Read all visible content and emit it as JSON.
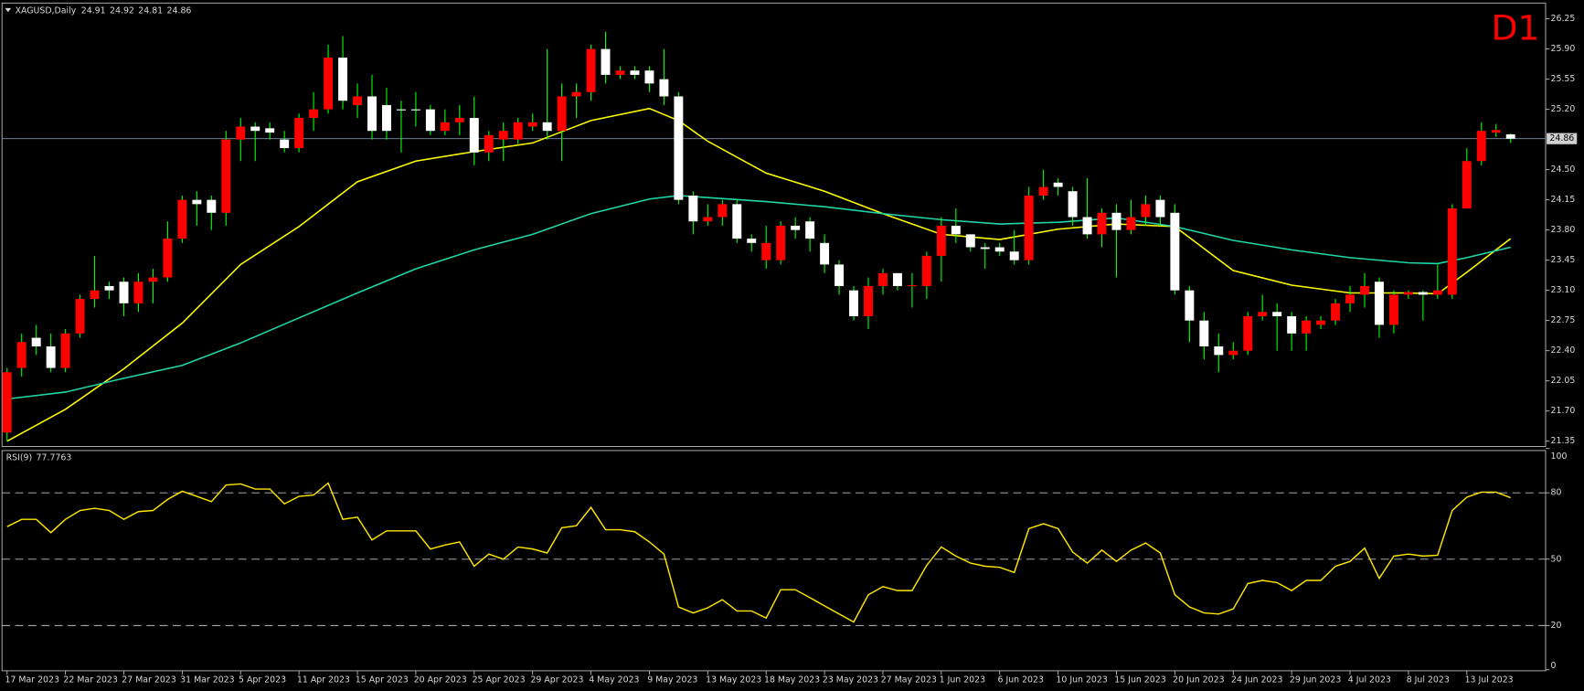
{
  "chart_data": [
    {
      "type": "candlestick",
      "title": "XAGUSD,Daily",
      "annotation": "D1",
      "categories": [
        "17 Mar 2023",
        null,
        null,
        null,
        "22 Mar 2023",
        null,
        null,
        null,
        "27 Mar 2023",
        null,
        null,
        null,
        "31 Mar 2023",
        null,
        null,
        null,
        "5 Apr 2023",
        null,
        null,
        null,
        "11 Apr 2023",
        null,
        null,
        null,
        "15 Apr 2023",
        null,
        null,
        null,
        "20 Apr 2023",
        null,
        null,
        null,
        "25 Apr 2023",
        null,
        null,
        null,
        "29 Apr 2023",
        null,
        null,
        null,
        "4 May 2023",
        null,
        null,
        null,
        "9 May 2023",
        null,
        null,
        null,
        "13 May 2023",
        null,
        null,
        null,
        "18 May 2023",
        null,
        null,
        null,
        "23 May 2023",
        null,
        null,
        null,
        "27 May 2023",
        null,
        null,
        null,
        "1 Jun 2023",
        null,
        null,
        null,
        "6 Jun 2023",
        null,
        null,
        null,
        "10 Jun 2023",
        null,
        null,
        null,
        "15 Jun 2023",
        null,
        null,
        null,
        "20 Jun 2023",
        null,
        null,
        null,
        "24 Jun 2023",
        null,
        null,
        null,
        "29 Jun 2023",
        null,
        null,
        null,
        "4 Jul 2023",
        null,
        null,
        null,
        "8 Jul 2023",
        null,
        null,
        null,
        "13 Jul 2023",
        null,
        null,
        null
      ],
      "open": [
        21.45,
        22.2,
        22.55,
        22.45,
        22.2,
        22.6,
        23,
        23.15,
        23.2,
        22.95,
        23.2,
        23.25,
        23.7,
        24.15,
        24.15,
        24,
        24.85,
        25,
        24.98,
        24.85,
        24.75,
        25.1,
        25.2,
        25.8,
        25.25,
        25.35,
        25.25,
        25.2,
        25.2,
        25.2,
        24.95,
        25.05,
        25.1,
        24.7,
        24.85,
        24.85,
        25,
        25.05,
        24.95,
        25.35,
        25.4,
        25.9,
        25.6,
        25.65,
        25.65,
        25.55,
        25.35,
        24.2,
        23.9,
        23.95,
        24.1,
        23.7,
        23.45,
        23.45,
        23.85,
        23.9,
        23.65,
        23.4,
        23.1,
        22.8,
        23.15,
        23.3,
        23.15,
        23.15,
        23.5,
        23.85,
        23.75,
        23.6,
        23.6,
        23.55,
        23.45,
        24.2,
        24.35,
        24.25,
        23.95,
        23.75,
        24,
        23.8,
        23.95,
        24.15,
        24,
        23.1,
        22.75,
        22.45,
        22.35,
        22.4,
        22.8,
        22.85,
        22.8,
        22.6,
        22.7,
        22.75,
        22.95,
        23.05,
        23.2,
        22.7,
        23.05,
        23.08,
        23.05,
        23.05,
        24.05,
        24.6,
        24.93,
        24.91
      ],
      "high": [
        22.2,
        22.6,
        22.7,
        22.6,
        22.65,
        23.05,
        23.5,
        23.2,
        23.25,
        23.3,
        23.35,
        23.9,
        24.2,
        24.25,
        24.2,
        24.95,
        25.1,
        25.05,
        25.05,
        24.95,
        25.15,
        25.4,
        25.95,
        26.05,
        25.5,
        25.6,
        25.45,
        25.3,
        25.4,
        25.25,
        25.2,
        25.25,
        25.35,
        24.95,
        25.05,
        25.1,
        25.15,
        25.9,
        25.5,
        25.5,
        25.95,
        26.1,
        25.7,
        25.7,
        25.7,
        25.9,
        25.4,
        24.25,
        24.1,
        24.15,
        24.15,
        23.75,
        23.85,
        23.9,
        23.95,
        23.95,
        23.75,
        23.45,
        23.15,
        23.25,
        23.35,
        23.3,
        23.3,
        23.55,
        23.95,
        24.05,
        23.75,
        23.65,
        23.65,
        23.8,
        24.3,
        24.5,
        24.4,
        24.3,
        24.4,
        24.05,
        24.1,
        24.15,
        24.2,
        24.2,
        24.1,
        23.15,
        22.85,
        22.6,
        22.5,
        22.85,
        23.05,
        22.95,
        22.85,
        22.8,
        22.8,
        23,
        23.15,
        23.3,
        23.25,
        23.1,
        23.1,
        23.1,
        23.4,
        24.1,
        24.75,
        25.05,
        25.03,
        24.92
      ],
      "low": [
        21.35,
        22.1,
        22.35,
        22.15,
        22.15,
        22.55,
        22.9,
        23,
        22.8,
        22.85,
        22.95,
        23.2,
        23.65,
        23.85,
        23.8,
        23.85,
        24.6,
        24.6,
        24.85,
        24.7,
        24.7,
        24.95,
        25.15,
        25.2,
        25.1,
        24.85,
        24.85,
        24.7,
        25,
        24.9,
        24.9,
        24.9,
        24.55,
        24.6,
        24.6,
        24.8,
        24.95,
        24.85,
        24.6,
        25.1,
        25.3,
        25.5,
        25.55,
        25.55,
        25.4,
        25.25,
        24.1,
        23.75,
        23.85,
        23.85,
        23.65,
        23.55,
        23.35,
        23.4,
        23.7,
        23.55,
        23.3,
        23.05,
        22.75,
        22.65,
        23.05,
        23.1,
        22.9,
        23,
        23.2,
        23.65,
        23.55,
        23.35,
        23.5,
        23.4,
        23.4,
        24.15,
        24.2,
        23.85,
        23.7,
        23.6,
        23.25,
        23.75,
        23.85,
        23.85,
        23.05,
        22.5,
        22.3,
        22.15,
        22.3,
        22.35,
        22.75,
        22.4,
        22.4,
        22.4,
        22.65,
        22.7,
        22.85,
        22.9,
        22.55,
        22.6,
        23,
        22.75,
        23,
        23,
        24.05,
        24.55,
        24.88,
        24.81
      ],
      "close": [
        22.15,
        22.5,
        22.45,
        22.2,
        22.6,
        23,
        23.1,
        23.1,
        22.95,
        23.2,
        23.25,
        23.7,
        24.15,
        24.1,
        24,
        24.85,
        25,
        24.95,
        24.93,
        24.75,
        25.1,
        25.2,
        25.8,
        25.3,
        25.35,
        24.95,
        24.95,
        25.19,
        25.19,
        24.95,
        25.05,
        25.1,
        24.7,
        24.9,
        24.95,
        25.05,
        25.05,
        24.95,
        25.35,
        25.4,
        25.9,
        25.6,
        25.65,
        25.6,
        25.5,
        25.35,
        24.15,
        23.9,
        23.95,
        24.1,
        23.7,
        23.65,
        23.65,
        23.85,
        23.8,
        23.7,
        23.4,
        23.15,
        22.8,
        23.15,
        23.3,
        23.15,
        23.16,
        23.5,
        23.85,
        23.75,
        23.6,
        23.58,
        23.55,
        23.45,
        24.2,
        24.3,
        24.3,
        23.95,
        23.75,
        24,
        23.8,
        23.95,
        24.1,
        23.95,
        23.1,
        22.75,
        22.45,
        22.35,
        22.4,
        22.8,
        22.85,
        22.8,
        22.6,
        22.75,
        22.75,
        22.95,
        23.05,
        23.15,
        22.7,
        23.05,
        23.08,
        23.05,
        23.1,
        24.05,
        24.6,
        24.95,
        24.96,
        24.86
      ],
      "up_color": "#ff0000",
      "down_color": "#ffffff",
      "wick_color": "#00ff00",
      "price_line_color": "#7f93a8",
      "series": [
        {
          "color": "#ffff00",
          "x": [
            0,
            4,
            8,
            12,
            16,
            20,
            24,
            28,
            32,
            36,
            40,
            44,
            46,
            48,
            52,
            56,
            60,
            64,
            68,
            72,
            76,
            80,
            84,
            88,
            92,
            96,
            98,
            100,
            103
          ],
          "values": [
            21.35,
            21.72,
            22.19,
            22.72,
            23.4,
            23.84,
            24.36,
            24.6,
            24.71,
            24.81,
            25.07,
            25.21,
            25.07,
            24.83,
            24.46,
            24.25,
            23.99,
            23.75,
            23.69,
            23.81,
            23.87,
            23.84,
            23.33,
            23.16,
            23.07,
            23.07,
            23.06,
            23.31,
            23.7
          ]
        },
        {
          "color": "#1fd8a8",
          "x": [
            0,
            4,
            8,
            12,
            16,
            20,
            24,
            28,
            32,
            36,
            40,
            44,
            46,
            52,
            56,
            60,
            64,
            68,
            72,
            76,
            80,
            84,
            88,
            92,
            96,
            98,
            100,
            103
          ],
          "values": [
            21.84,
            21.92,
            22.08,
            22.23,
            22.49,
            22.78,
            23.07,
            23.35,
            23.57,
            23.75,
            23.99,
            24.16,
            24.2,
            24.13,
            24.07,
            23.99,
            23.92,
            23.87,
            23.89,
            23.94,
            23.84,
            23.68,
            23.57,
            23.48,
            23.42,
            23.41,
            23.48,
            23.6
          ]
        }
      ],
      "ylim": [
        21.3,
        26.41
      ],
      "yticks": [
        21.35,
        {
          "value": 21.7,
          "label": "21.70"
        },
        22.05,
        {
          "value": 22.4,
          "label": "22.40"
        },
        22.75,
        {
          "value": 23.1,
          "label": "23.10"
        },
        23.45,
        {
          "value": 23.8,
          "label": "23.80"
        },
        24.15,
        {
          "value": 24.5,
          "label": "24.50"
        },
        {
          "value": 25.2,
          "label": "25.20"
        },
        25.55,
        {
          "value": 25.9,
          "label": "25.90"
        },
        26.25
      ],
      "grid": false
    },
    {
      "type": "line",
      "title": "RSI(9)",
      "series": [
        {
          "color": "#ffe600",
          "values": [
            64.7,
            68,
            68,
            62,
            68,
            72,
            73,
            72,
            68,
            71.5,
            72,
            77,
            80.7,
            78.4,
            76,
            83.5,
            84,
            81.7,
            81.7,
            75,
            78.4,
            79,
            84.4,
            68,
            69,
            58.7,
            62.8,
            62.8,
            62.8,
            54.6,
            56.4,
            57.8,
            46.8,
            52.3,
            50,
            55.5,
            54.6,
            52.8,
            64.2,
            65.1,
            73.4,
            63.3,
            63.3,
            62.4,
            57.8,
            52.3,
            28.4,
            25.7,
            28,
            31.7,
            26.6,
            26.6,
            23.4,
            36.2,
            36.2,
            32.6,
            28.9,
            25.2,
            21.6,
            33.9,
            37.6,
            35.8,
            35.8,
            47.2,
            55.5,
            51.4,
            48.2,
            46.8,
            46.3,
            44,
            63.8,
            66,
            63.8,
            53.2,
            48.2,
            54.1,
            49,
            54.1,
            57.3,
            52.8,
            33.9,
            28.4,
            25.7,
            25.2,
            27.5,
            39,
            40.4,
            39.4,
            35.8,
            40.4,
            40.4,
            46.8,
            49,
            55,
            41.3,
            51.4,
            52.3,
            51.4,
            51.8,
            72,
            78,
            80.3,
            80.3,
            77.7763
          ]
        }
      ],
      "ylim": [
        0,
        100
      ],
      "yticks": [
        0,
        20,
        50,
        80,
        100
      ],
      "level_color": "#bdbdbd"
    }
  ]
}
